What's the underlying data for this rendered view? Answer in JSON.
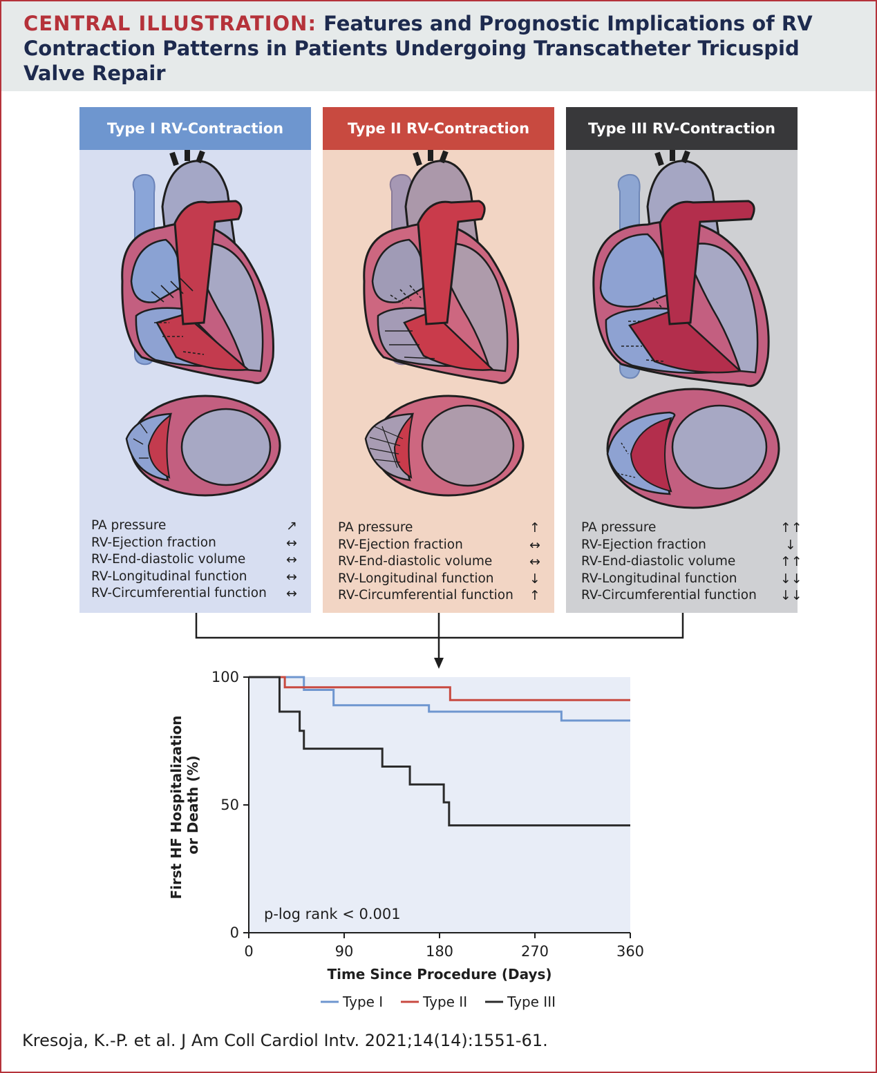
{
  "header": {
    "lead": "CENTRAL ILLUSTRATION:",
    "title": "Features and Prognostic Implications of RV Contraction Patterns in Patients Undergoing Transcatheter Tricuspid Valve Repair"
  },
  "colors": {
    "accent_red": "#b5323a",
    "navy": "#1d2a4e",
    "type1_header": "#6e96cf",
    "type1_bg": "#d7def1",
    "type2_header": "#c84a40",
    "type2_bg": "#f2d5c4",
    "type3_header": "#38383a",
    "type3_bg": "#cfd0d3",
    "chart_bg": "#e8edf7"
  },
  "panels": [
    {
      "title": "Type I RV-Contraction",
      "rows": [
        {
          "label": "PA pressure",
          "arrow": "↗"
        },
        {
          "label": "RV-Ejection fraction",
          "arrow": "↔"
        },
        {
          "label": "RV-End-diastolic volume",
          "arrow": "↔"
        },
        {
          "label": "RV-Longitudinal function",
          "arrow": "↔"
        },
        {
          "label": "RV-Circumferential function",
          "arrow": "↔"
        }
      ]
    },
    {
      "title": "Type II RV-Contraction",
      "rows": [
        {
          "label": "PA pressure",
          "arrow": "↑"
        },
        {
          "label": "RV-Ejection fraction",
          "arrow": "↔"
        },
        {
          "label": "RV-End-diastolic volume",
          "arrow": "↔"
        },
        {
          "label": "RV-Longitudinal function",
          "arrow": "↓"
        },
        {
          "label": "RV-Circumferential function",
          "arrow": "↑"
        }
      ]
    },
    {
      "title": "Type III RV-Contraction",
      "rows": [
        {
          "label": "PA pressure",
          "arrow": "↑↑"
        },
        {
          "label": "RV-Ejection fraction",
          "arrow": "↓"
        },
        {
          "label": "RV-End-diastolic volume",
          "arrow": "↑↑"
        },
        {
          "label": "RV-Longitudinal function",
          "arrow": "↓↓"
        },
        {
          "label": "RV-Circumferential function",
          "arrow": "↓↓"
        }
      ]
    }
  ],
  "chart_data": {
    "type": "line",
    "title": "",
    "xlabel": "Time Since Procedure (Days)",
    "ylabel": "First HF Hospitalization or Death (%)",
    "xlim": [
      0,
      360
    ],
    "ylim": [
      0,
      100
    ],
    "xticks": [
      0,
      90,
      180,
      270,
      360
    ],
    "yticks": [
      0,
      50,
      100
    ],
    "annotation": "p-log rank < 0.001",
    "legend_position": "bottom",
    "series": [
      {
        "name": "Type I",
        "color": "#6e96cf",
        "step": true,
        "x": [
          0,
          52,
          52,
          80,
          80,
          170,
          170,
          295,
          295,
          360
        ],
        "y": [
          100,
          100,
          95,
          95,
          89,
          89,
          86.5,
          86.5,
          83,
          83
        ]
      },
      {
        "name": "Type II",
        "color": "#c84a40",
        "step": true,
        "x": [
          0,
          34,
          34,
          190,
          190,
          360
        ],
        "y": [
          100,
          100,
          96,
          96,
          91,
          91
        ]
      },
      {
        "name": "Type III",
        "color": "#2b2b2b",
        "step": true,
        "x": [
          0,
          29,
          29,
          48,
          48,
          52,
          52,
          126,
          126,
          152,
          152,
          184,
          184,
          189,
          189,
          360
        ],
        "y": [
          100,
          100,
          86.5,
          86.5,
          79,
          79,
          72,
          72,
          65,
          65,
          58,
          58,
          51,
          51,
          42,
          42
        ]
      }
    ]
  },
  "citation": "Kresoja, K.-P. et al. J Am Coll Cardiol Intv. 2021;14(14):1551-61."
}
